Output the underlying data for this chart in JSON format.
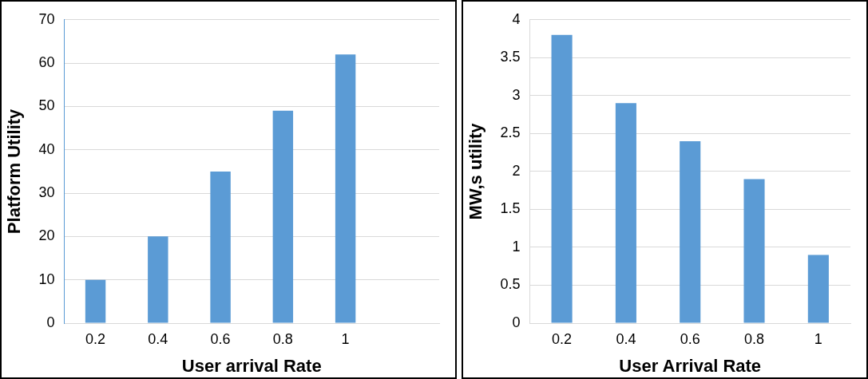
{
  "chart_data": [
    {
      "type": "bar",
      "xlabel": "User arrival Rate",
      "ylabel": "Platform Utility",
      "categories": [
        "0.2",
        "0.4",
        "0.6",
        "0.8",
        "1",
        null
      ],
      "values": [
        10,
        20,
        35,
        49,
        62,
        null
      ],
      "color": "#5b9bd5",
      "ylim": [
        0,
        70
      ],
      "yticks": [
        0,
        10,
        20,
        30,
        40,
        50,
        60,
        70
      ],
      "grid": "y",
      "legend": false
    },
    {
      "type": "bar",
      "xlabel": "User Arrival Rate",
      "ylabel": "MW,s utility",
      "categories": [
        "0.2",
        "0.4",
        "0.6",
        "0.8",
        "1"
      ],
      "values": [
        3.8,
        2.9,
        2.4,
        1.9,
        0.9
      ],
      "color": "#5b9bd5",
      "ylim": [
        0,
        4
      ],
      "yticks": [
        0,
        0.5,
        1,
        1.5,
        2,
        2.5,
        3,
        3.5,
        4
      ],
      "grid": "y",
      "legend": false
    }
  ]
}
